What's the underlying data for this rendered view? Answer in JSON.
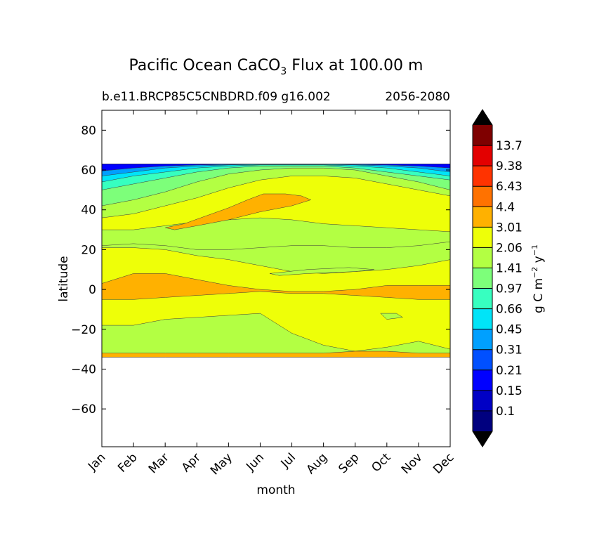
{
  "chart_data": {
    "type": "heatmap",
    "title_main": "Pacific Ocean CaCO",
    "title_sub_script": "3",
    "title_tail": " Flux at 100.00 m",
    "subtitle_left": "b.e11.BRCP85C5CNBDRD.f09 g16.002",
    "subtitle_right": "2056-2080",
    "xlabel": "month",
    "ylabel": "latitude",
    "x_ticks": [
      "Jan",
      "Feb",
      "Mar",
      "Apr",
      "May",
      "Jun",
      "Jul",
      "Aug",
      "Sep",
      "Oct",
      "Nov",
      "Dec"
    ],
    "xlim": [
      0,
      11
    ],
    "y_ticks": [
      80,
      60,
      40,
      20,
      0,
      -20,
      -40,
      -60
    ],
    "y_tick_labels": [
      "80",
      "60",
      "40",
      "20",
      "0",
      "−20",
      "−40",
      "−60"
    ],
    "ylim": [
      -79,
      90
    ],
    "data_lat_range": [
      -34,
      63
    ],
    "colorbar": {
      "levels": [
        "0.1",
        "0.15",
        "0.21",
        "0.31",
        "0.45",
        "0.66",
        "0.97",
        "1.41",
        "2.06",
        "3.01",
        "4.4",
        "6.43",
        "9.38",
        "13.7"
      ],
      "colors": [
        "#00007f",
        "#0000c5",
        "#0000ff",
        "#0050ff",
        "#00a0ff",
        "#00e4f8",
        "#37ffc0",
        "#7dff7a",
        "#b3ff43",
        "#eeff08",
        "#ffb100",
        "#ff7200",
        "#ff3300",
        "#e30000",
        "#7f0000"
      ],
      "extend": "both",
      "label_prefix": "g C m",
      "label_exp1": "−2",
      "label_mid": " y",
      "label_exp2": "−1"
    },
    "bands": [
      {
        "level": 8,
        "top": [
          22,
          23,
          22,
          20,
          20,
          21,
          22,
          22,
          21,
          21,
          22,
          24
        ],
        "bottom": [
          -34,
          -34,
          -34,
          -34,
          -34,
          -34,
          -34,
          -34,
          -34,
          -34,
          -34,
          -34
        ]
      },
      {
        "level": 9,
        "top": [
          21,
          21,
          20,
          17,
          15,
          12,
          9,
          8,
          9,
          10,
          12,
          15
        ],
        "bottom": [
          -18,
          -18,
          -15,
          -14,
          -13,
          -12,
          -22,
          -28,
          -31,
          -29,
          -26,
          -30
        ]
      },
      {
        "level": 10,
        "top": [
          3,
          8,
          8,
          5,
          2,
          0,
          -1,
          -1,
          0,
          2,
          2,
          2
        ],
        "bottom": [
          -5,
          -5,
          -4,
          -3,
          -2,
          -1,
          -2,
          -2,
          -3,
          -4,
          -5,
          -5
        ]
      },
      {
        "level": 10,
        "top": [
          -32,
          -32,
          -32,
          -32,
          -32,
          -32,
          -32,
          -32,
          -31,
          -31,
          -32,
          -32
        ],
        "bottom": [
          -34,
          -34,
          -34,
          -34,
          -34,
          -34,
          -34,
          -34,
          -34,
          -34,
          -34,
          -34
        ]
      },
      {
        "level": 9,
        "top": [
          63,
          63,
          63,
          63,
          63,
          63,
          63,
          63,
          63,
          63,
          63,
          63
        ],
        "bottom": [
          30,
          30,
          32,
          34,
          35,
          36,
          35,
          33,
          32,
          31,
          30,
          29
        ]
      },
      {
        "level": 8,
        "top": [
          63,
          63,
          63,
          63,
          63,
          63,
          63,
          63,
          63,
          63,
          63,
          63
        ],
        "bottom": [
          36,
          38,
          42,
          46,
          51,
          55,
          57,
          57,
          56,
          53,
          50,
          47
        ]
      },
      {
        "level": 7,
        "top": [
          63,
          63,
          63,
          63,
          63,
          63,
          63,
          63,
          63,
          63,
          63,
          63
        ],
        "bottom": [
          42,
          45,
          49,
          54,
          58,
          60,
          61,
          61,
          60,
          57,
          54,
          50
        ]
      },
      {
        "level": 6,
        "top": [
          63,
          63,
          63,
          63,
          63,
          63,
          63,
          63,
          63,
          63,
          63,
          63
        ],
        "bottom": [
          50,
          53,
          56,
          59,
          61,
          62,
          62,
          62,
          61,
          59,
          57,
          55
        ]
      },
      {
        "level": 5,
        "top": [
          63,
          63,
          63,
          63,
          63,
          63,
          63,
          63,
          63,
          63,
          63,
          63
        ],
        "bottom": [
          54,
          57,
          59,
          61,
          62,
          62.5,
          62.5,
          62.5,
          62,
          61,
          59,
          57
        ]
      },
      {
        "level": 4,
        "top": [
          63,
          63,
          63,
          63,
          63,
          63,
          63,
          63,
          63,
          63,
          63,
          63
        ],
        "bottom": [
          57,
          59,
          61,
          62,
          62.5,
          62.8,
          62.8,
          62.8,
          62.5,
          62,
          61,
          59
        ]
      },
      {
        "level": 2,
        "top": [
          63,
          63,
          63,
          63,
          63,
          63,
          63,
          63,
          63,
          63,
          63,
          63
        ],
        "bottom": [
          59.5,
          61,
          62,
          62.5,
          62.8,
          63,
          63,
          63,
          62.8,
          62.5,
          62,
          61
        ]
      }
    ],
    "blobs": [
      {
        "level": 10,
        "points": [
          [
            2.0,
            31
          ],
          [
            2.6,
            33
          ],
          [
            3.3,
            37
          ],
          [
            4.0,
            41
          ],
          [
            4.6,
            45
          ],
          [
            5.1,
            48
          ],
          [
            5.8,
            48
          ],
          [
            6.3,
            47
          ],
          [
            6.6,
            45
          ],
          [
            6.0,
            42
          ],
          [
            5.0,
            39
          ],
          [
            4.0,
            35
          ],
          [
            3.0,
            32
          ],
          [
            2.3,
            30
          ]
        ]
      },
      {
        "level": 8,
        "points": [
          [
            5.3,
            8
          ],
          [
            6.5,
            10
          ],
          [
            7.8,
            11
          ],
          [
            8.6,
            10
          ],
          [
            8.0,
            9
          ],
          [
            6.5,
            8
          ],
          [
            5.6,
            7
          ]
        ]
      },
      {
        "level": 8,
        "points": [
          [
            8.8,
            -12
          ],
          [
            9.3,
            -12
          ],
          [
            9.5,
            -14
          ],
          [
            9.0,
            -15
          ]
        ]
      }
    ]
  }
}
